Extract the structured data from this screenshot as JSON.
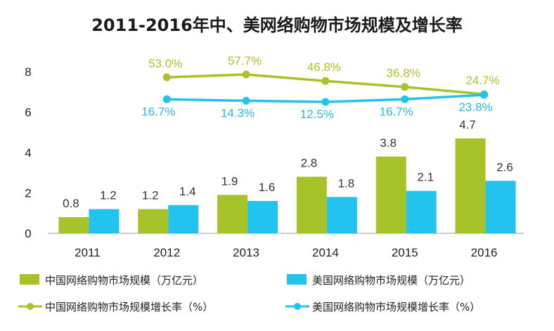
{
  "chart_data": {
    "type": "bar",
    "title": "2011-2016年中、美网络购物市场规模及增长率",
    "categories": [
      "2011",
      "2012",
      "2013",
      "2014",
      "2015",
      "2016"
    ],
    "ylim": [
      0,
      8
    ],
    "yticks": [
      "0",
      "2",
      "4",
      "6",
      "8"
    ],
    "grid": false,
    "legend_position": "bottom",
    "series": [
      {
        "name": "中国网络购物市场规模（万亿元）",
        "kind": "bar",
        "color": "#a6c42a",
        "values": [
          0.8,
          1.2,
          1.9,
          2.8,
          3.8,
          4.7
        ],
        "labels": [
          "0.8",
          "1.2",
          "1.9",
          "2.8",
          "3.8",
          "4.7"
        ]
      },
      {
        "name": "美国网络购物市场规模（万亿元）",
        "kind": "bar",
        "color": "#22c3ee",
        "values": [
          1.2,
          1.4,
          1.6,
          1.8,
          2.1,
          2.6
        ],
        "labels": [
          "1.2",
          "1.4",
          "1.6",
          "1.8",
          "2.1",
          "2.6"
        ]
      },
      {
        "name": "中国网络购物市场规模增长率（%）",
        "kind": "line",
        "color": "#a6c42a",
        "values": [
          null,
          53.0,
          57.7,
          46.8,
          36.8,
          24.7
        ],
        "labels": [
          "",
          "53.0%",
          "57.7%",
          "46.8%",
          "36.8%",
          "24.7%"
        ]
      },
      {
        "name": "美国网络购物市场规模增长率（%）",
        "kind": "line",
        "color": "#22c3ee",
        "values": [
          null,
          16.7,
          14.3,
          12.5,
          16.7,
          23.8
        ],
        "labels": [
          "",
          "16.7%",
          "14.3%",
          "12.5%",
          "16.7%",
          "23.8%"
        ]
      }
    ]
  }
}
